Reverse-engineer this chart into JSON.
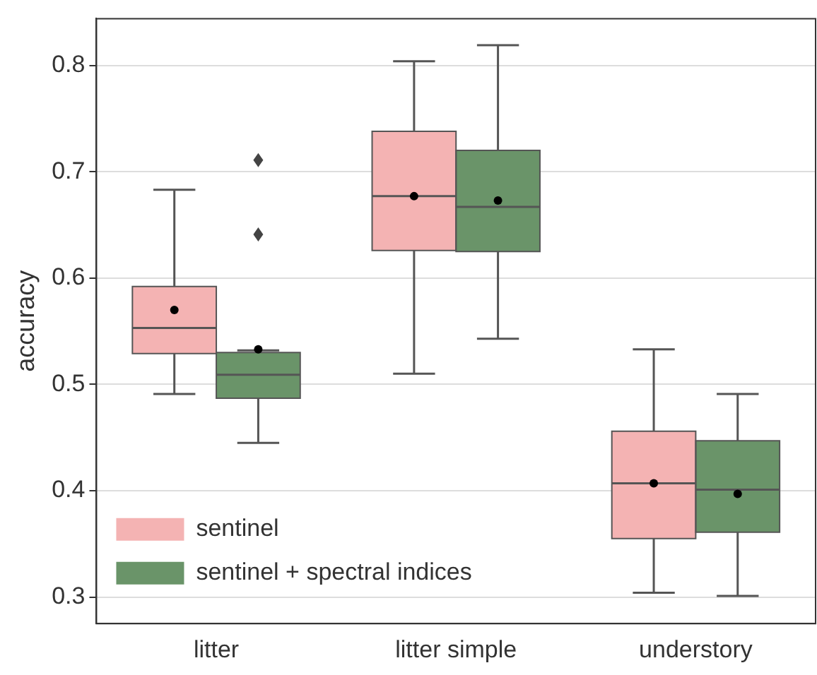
{
  "chart_data": {
    "type": "box",
    "ylabel": "accuracy",
    "categories": [
      "litter",
      "litter simple",
      "understory"
    ],
    "series": [
      {
        "name": "sentinel",
        "color": "#f4b3b3",
        "boxes": [
          {
            "low": 0.491,
            "q1": 0.529,
            "median": 0.553,
            "q3": 0.592,
            "high": 0.683,
            "mean": 0.57
          },
          {
            "low": 0.51,
            "q1": 0.626,
            "median": 0.677,
            "q3": 0.738,
            "high": 0.804,
            "mean": 0.677
          },
          {
            "low": 0.304,
            "q1": 0.355,
            "median": 0.407,
            "q3": 0.456,
            "high": 0.533,
            "mean": 0.407
          }
        ]
      },
      {
        "name": "sentinel + spectral indices",
        "color": "#6a9469",
        "boxes": [
          {
            "low": 0.445,
            "q1": 0.487,
            "median": 0.509,
            "q3": 0.53,
            "high": 0.532,
            "mean": 0.533,
            "outliers": [
              0.711,
              0.641
            ]
          },
          {
            "low": 0.543,
            "q1": 0.625,
            "median": 0.667,
            "q3": 0.72,
            "high": 0.819,
            "mean": 0.673
          },
          {
            "low": 0.301,
            "q1": 0.361,
            "median": 0.401,
            "q3": 0.447,
            "high": 0.491,
            "mean": 0.397
          }
        ]
      }
    ],
    "ylim": [
      0.275,
      0.844
    ],
    "yticks": [
      0.3,
      0.4,
      0.5,
      0.6,
      0.7,
      0.8
    ],
    "grid": "y",
    "legend": "bottom left"
  }
}
